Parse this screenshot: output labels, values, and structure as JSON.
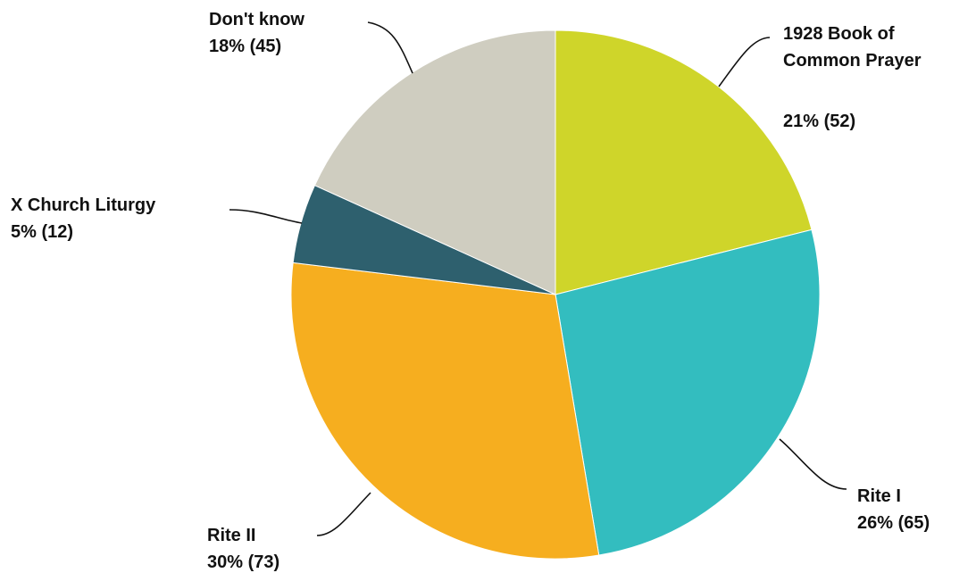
{
  "chart_data": {
    "type": "pie",
    "start_angle_deg": 0,
    "direction": "clockwise",
    "slices": [
      {
        "label": "1928 Book of Common Prayer",
        "label_lines": [
          "1928 Book of",
          "Common Prayer"
        ],
        "value_text": "21% (52)",
        "percent": 21,
        "count": 52,
        "color": "#cfd52a"
      },
      {
        "label": "Rite I",
        "label_lines": [
          "Rite I"
        ],
        "value_text": "26% (65)",
        "percent": 26,
        "count": 65,
        "color": "#33bdbf"
      },
      {
        "label": "Rite II",
        "label_lines": [
          "Rite II"
        ],
        "value_text": "30% (73)",
        "percent": 30,
        "count": 73,
        "color": "#f6ae1f"
      },
      {
        "label": "X Church Liturgy",
        "label_lines": [
          "X Church Liturgy"
        ],
        "value_text": "5% (12)",
        "percent": 5,
        "count": 12,
        "color": "#2e606e"
      },
      {
        "label": "Don't know",
        "label_lines": [
          "Don't know"
        ],
        "value_text": "18% (45)",
        "percent": 18,
        "count": 45,
        "color": "#cfcdc0"
      }
    ]
  }
}
